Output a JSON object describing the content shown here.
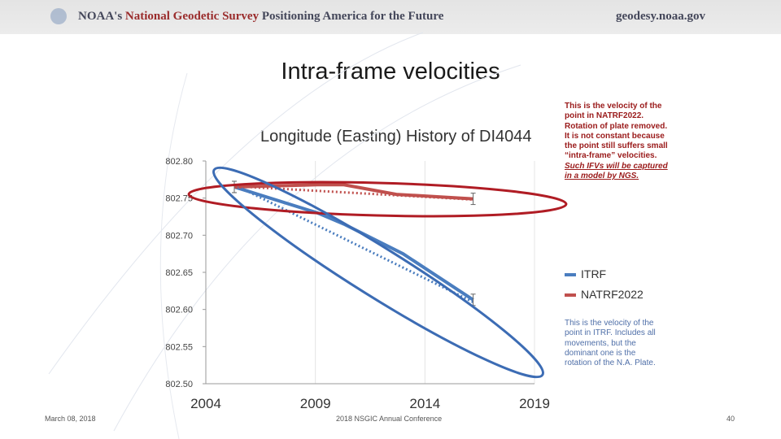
{
  "header": {
    "left_prefix": "NOAA's",
    "left_name": "National Geodetic Survey",
    "left_tagline": "Positioning America for the Future",
    "right": "geodesy.noaa.gov"
  },
  "slide": {
    "title": "Intra-frame velocities",
    "note_red_lines": [
      "This is the velocity of the",
      "point in NATRF2022.",
      "Rotation of plate removed.",
      "It is not constant because",
      "the point still suffers small",
      "“intra-frame” velocities."
    ],
    "note_red_underlined": [
      "Such IFVs will be captured",
      "in a model by NGS."
    ],
    "note_blue_lines": [
      "This is the velocity of the",
      "point in ITRF.  Includes all",
      "movements, but the",
      "dominant one is the",
      "rotation of the N.A. Plate."
    ]
  },
  "footer": {
    "date": "March 08, 2018",
    "conference": "2018 NSGIC Annual Conference",
    "page": "40"
  },
  "colors": {
    "itrf": "#4a7dbf",
    "natrf": "#c0504d",
    "ellipse_blue": "#3c6cb4",
    "ellipse_red": "#b01c24",
    "axis": "#999999"
  },
  "chart_data": {
    "type": "line",
    "title": "Longitude (Easting) History of DI4044",
    "xlim": [
      2004,
      2019
    ],
    "ylim": [
      802.5,
      802.8
    ],
    "x_ticks": [
      "2004",
      "2009",
      "2014",
      "2019"
    ],
    "y_ticks": [
      "802.50",
      "802.55",
      "802.60",
      "802.65",
      "802.70",
      "802.75",
      "802.80"
    ],
    "series": [
      {
        "name": "ITRF",
        "x": [
          2005.3,
          2009.1,
          2010.3,
          2013.0,
          2016.2
        ],
        "y": [
          802.765,
          802.73,
          802.715,
          802.675,
          802.613
        ]
      },
      {
        "name": "NATRF2022",
        "x": [
          2005.3,
          2009.1,
          2010.3,
          2012.7,
          2016.2
        ],
        "y": [
          802.765,
          802.768,
          802.768,
          802.755,
          802.749
        ]
      }
    ],
    "trendlines": [
      {
        "series": "ITRF",
        "x": [
          2005.3,
          2016.2
        ],
        "y": [
          802.768,
          802.61
        ]
      },
      {
        "series": "NATRF2022",
        "x": [
          2005.3,
          2016.2
        ],
        "y": [
          802.766,
          802.748
        ]
      }
    ],
    "error_bar_years": [
      2005.3,
      2016.2
    ]
  }
}
